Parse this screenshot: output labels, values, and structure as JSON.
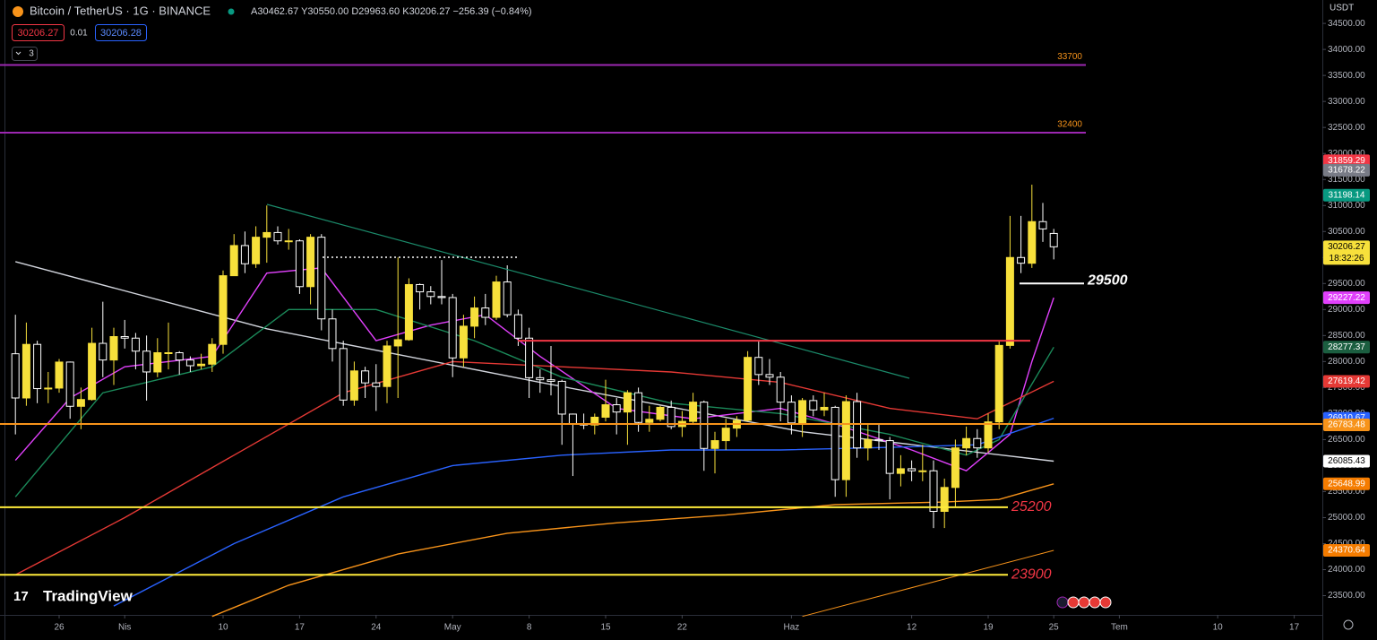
{
  "chart_data": {
    "type": "candlestick",
    "title": "Bitcoin / TetherUS · 1G · BINANCE",
    "ohlc_text": "A30462.67 Y30550.00 D29963.60 K30206.27 −256.39 (−0.84%)",
    "sell_price": "30206.27",
    "spread": "0.01",
    "buy_price": "30206.28",
    "indicator_count": "3",
    "currency": "USDT",
    "logo": "TradingView",
    "countdown": "18:32:26",
    "up_color": "#f7e03b",
    "down_color": "#000000",
    "categories": [
      null,
      null,
      null,
      null,
      null,
      null,
      null,
      null,
      null,
      null,
      null,
      null,
      null,
      null,
      null,
      null,
      null,
      null,
      null,
      null,
      null,
      null,
      null,
      null,
      null,
      null,
      null,
      null,
      null,
      null,
      null,
      null,
      null,
      null,
      null,
      null,
      null,
      null,
      null,
      null,
      null,
      null,
      null,
      null,
      null,
      null,
      null,
      null,
      null,
      null,
      null,
      null,
      null,
      null,
      null,
      null,
      null,
      null,
      null,
      null,
      null,
      null,
      null,
      null,
      null,
      null,
      null,
      null,
      null,
      null,
      null,
      null,
      null,
      null,
      null,
      null,
      null,
      null,
      null,
      null,
      null,
      null,
      null,
      null,
      null,
      null,
      null,
      null,
      null,
      null,
      null,
      null,
      null,
      null,
      null,
      null
    ],
    "open": [
      28150,
      27300,
      28330,
      27480,
      27490,
      27990,
      27140,
      27270,
      28350,
      28030,
      28480,
      28450,
      28200,
      27800,
      28170,
      28170,
      28030,
      27920,
      27950,
      28330,
      29650,
      30230,
      29880,
      30390,
      30480,
      30320,
      30320,
      29440,
      30390,
      28820,
      28250,
      27260,
      27820,
      27590,
      27520,
      28300,
      28420,
      29480,
      29340,
      29250,
      29230,
      28070,
      28680,
      29030,
      28850,
      29530,
      28900,
      28450,
      27690,
      27650,
      27620,
      26990,
      26800,
      26780,
      26930,
      27170,
      27030,
      27400,
      26830,
      26890,
      27120,
      26750,
      26850,
      27220,
      26330,
      26480,
      26720,
      26870,
      28080,
      27750,
      27700,
      27220,
      26820,
      27250,
      27070,
      27120,
      25730,
      27230,
      26340,
      26500,
      26480,
      25850,
      25940,
      25900,
      25900,
      25120,
      25580,
      26340,
      26520,
      26340,
      26840,
      28310,
      30000,
      29890,
      30690,
      30462.67
    ],
    "high": [
      28900,
      28750,
      28400,
      27800,
      28050,
      28000,
      27500,
      28650,
      29150,
      28650,
      28800,
      28550,
      28500,
      28450,
      28750,
      28200,
      28100,
      28150,
      28450,
      29750,
      30450,
      30500,
      30600,
      31000,
      30600,
      30550,
      30350,
      30450,
      30450,
      29000,
      28400,
      28000,
      27900,
      27950,
      28400,
      30000,
      29600,
      29500,
      29450,
      29950,
      29300,
      28900,
      29250,
      29300,
      29650,
      29850,
      29000,
      28650,
      27850,
      28300,
      27650,
      27000,
      27000,
      27000,
      27650,
      27300,
      27450,
      27500,
      27150,
      27150,
      27250,
      27050,
      27400,
      27250,
      26650,
      26900,
      26950,
      28200,
      28400,
      28050,
      27800,
      27350,
      27300,
      27350,
      27400,
      27150,
      27350,
      27400,
      26800,
      26800,
      26550,
      26200,
      26100,
      26400,
      26100,
      25750,
      26500,
      26750,
      26700,
      27000,
      28400,
      30800,
      30800,
      31400,
      31050,
      30550
    ],
    "low": [
      26600,
      27150,
      27200,
      27200,
      27400,
      26900,
      26700,
      27250,
      27700,
      27550,
      28250,
      27850,
      27250,
      27700,
      27850,
      27750,
      27800,
      27850,
      27800,
      28150,
      29650,
      29700,
      29800,
      29900,
      30250,
      30150,
      29300,
      29100,
      28600,
      28000,
      27150,
      27150,
      27300,
      27050,
      27200,
      27300,
      28400,
      29000,
      29100,
      29100,
      27700,
      27900,
      28450,
      28700,
      28800,
      28850,
      28300,
      27300,
      27400,
      27350,
      26400,
      25800,
      26700,
      26600,
      26850,
      26600,
      26400,
      26650,
      26650,
      26850,
      26700,
      26550,
      26800,
      25900,
      25850,
      26300,
      26550,
      26850,
      27550,
      27550,
      26850,
      26600,
      26550,
      26950,
      26950,
      25400,
      25400,
      26150,
      26100,
      26300,
      25350,
      25600,
      25700,
      25700,
      24800,
      24800,
      25200,
      26200,
      26150,
      26250,
      26700,
      28250,
      29700,
      29800,
      30300,
      29963.6
    ],
    "close": [
      27300,
      28330,
      27480,
      27490,
      27990,
      27140,
      27270,
      28350,
      28030,
      28480,
      28450,
      28200,
      27800,
      28170,
      28170,
      28030,
      27920,
      27950,
      28330,
      29650,
      30230,
      29880,
      30390,
      30480,
      30320,
      30320,
      29440,
      30390,
      28820,
      28250,
      27260,
      27820,
      27590,
      27520,
      28300,
      28420,
      29480,
      29340,
      29250,
      29230,
      28070,
      28680,
      29030,
      28850,
      29530,
      28900,
      28450,
      27690,
      27650,
      27620,
      26990,
      26800,
      26780,
      26930,
      27170,
      27030,
      27400,
      26830,
      26890,
      27120,
      26750,
      26850,
      27220,
      26330,
      26480,
      26720,
      26870,
      28080,
      27750,
      27700,
      27220,
      26820,
      27250,
      27070,
      27120,
      25730,
      27230,
      26340,
      26500,
      26480,
      25850,
      25940,
      25900,
      25900,
      25120,
      25580,
      26340,
      26520,
      26340,
      26840,
      28310,
      30000,
      29890,
      30690,
      30550,
      30206.27
    ],
    "ylim": [
      23130,
      34950
    ],
    "yticks": [
      {
        "value": 34500,
        "label": "34500.00"
      },
      {
        "value": 34000,
        "label": "34000.00"
      },
      {
        "value": 33500,
        "label": "33500.00"
      },
      {
        "value": 33000,
        "label": "33000.00"
      },
      {
        "value": 32500,
        "label": "32500.00"
      },
      {
        "value": 32000,
        "label": "32000.00"
      },
      {
        "value": 31500,
        "label": "31500.00"
      },
      {
        "value": 31000,
        "label": "31000.00"
      },
      {
        "value": 30500,
        "label": "30500.00"
      },
      {
        "value": 30000,
        "label": "30000.00"
      },
      {
        "value": 29500,
        "label": "29500.00"
      },
      {
        "value": 29000,
        "label": "29000.00"
      },
      {
        "value": 28500,
        "label": "28500.00"
      },
      {
        "value": 28000,
        "label": "28000.00"
      },
      {
        "value": 27500,
        "label": "27500.00"
      },
      {
        "value": 27000,
        "label": "27000.00"
      },
      {
        "value": 26500,
        "label": "26500.00"
      },
      {
        "value": 26000,
        "label": "26000.00"
      },
      {
        "value": 25500,
        "label": "25500.00"
      },
      {
        "value": 25000,
        "label": "25000.00"
      },
      {
        "value": 24500,
        "label": "24500.00"
      },
      {
        "value": 24000,
        "label": "24000.00"
      },
      {
        "value": 23500,
        "label": "23500.00"
      }
    ],
    "xticks": [
      {
        "value": 4,
        "label": "26"
      },
      {
        "value": 10,
        "label": "Nis"
      },
      {
        "value": 19,
        "label": "10"
      },
      {
        "value": 26,
        "label": "17"
      },
      {
        "value": 33,
        "label": "24"
      },
      {
        "value": 40,
        "label": "May"
      },
      {
        "value": 47,
        "label": "8"
      },
      {
        "value": 54,
        "label": "15"
      },
      {
        "value": 61,
        "label": "22"
      },
      {
        "value": 71,
        "label": "Haz"
      },
      {
        "value": 82,
        "label": "12"
      },
      {
        "value": 89,
        "label": "19"
      },
      {
        "value": 95,
        "label": "25"
      },
      {
        "value": 101,
        "label": "Tem"
      },
      {
        "value": 110,
        "label": "10"
      },
      {
        "value": 117,
        "label": "17"
      }
    ],
    "moving_averages": [
      {
        "color": "#d1d4dc",
        "x": [
          0,
          23,
          48,
          72,
          95
        ],
        "values": [
          29920,
          28630,
          27600,
          26650,
          26085.43
        ]
      },
      {
        "color": "#e040fb",
        "x": [
          0,
          5,
          10,
          18,
          23,
          28,
          33,
          38,
          43,
          48,
          55,
          62,
          70,
          75,
          82,
          87,
          91,
          93,
          95
        ],
        "values": [
          26100,
          27300,
          27900,
          28100,
          29700,
          29800,
          28400,
          28700,
          28900,
          28100,
          27100,
          26900,
          27100,
          26800,
          26300,
          25900,
          26600,
          28000,
          29227.22
        ]
      },
      {
        "color": "#1b8a5a",
        "x": [
          0,
          8,
          18,
          25,
          33,
          42,
          50,
          60,
          70,
          80,
          87,
          90,
          95
        ],
        "values": [
          25400,
          27400,
          27900,
          29000,
          29000,
          28400,
          27700,
          27200,
          27000,
          26600,
          26200,
          26500,
          28277.37
        ]
      },
      {
        "color": "#e53935",
        "x": [
          0,
          10,
          20,
          30,
          40,
          50,
          60,
          70,
          80,
          88,
          95
        ],
        "values": [
          23900,
          25000,
          26200,
          27400,
          28000,
          27900,
          27800,
          27600,
          27100,
          26900,
          27619.42
        ]
      },
      {
        "color": "#2962ff",
        "x": [
          9,
          20,
          30,
          40,
          50,
          60,
          70,
          80,
          88,
          95
        ],
        "values": [
          23300,
          24500,
          25400,
          26000,
          26200,
          26300,
          26300,
          26350,
          26400,
          26910.67
        ]
      },
      {
        "color": "#f7931a",
        "x": [
          18,
          25,
          35,
          45,
          55,
          65,
          75,
          85,
          90,
          95
        ],
        "values": [
          23100,
          23700,
          24300,
          24700,
          24900,
          25050,
          25250,
          25300,
          25350,
          25648.99
        ]
      },
      {
        "color": "#f7931a",
        "x": [
          72,
          95
        ],
        "values": [
          23100,
          24370.64
        ]
      }
    ],
    "levels": [
      {
        "value": 33700,
        "color": "#9c27b0"
      },
      {
        "value": 32400,
        "color": "#9c27b0"
      },
      {
        "value": 28400,
        "color": "#f23645"
      },
      {
        "value": 26800,
        "color": "#f7931a"
      },
      {
        "value": 25200,
        "color": "#ffeb3b"
      },
      {
        "value": 23900,
        "color": "#ffeb3b"
      },
      {
        "value": 29500,
        "color": "#ffffff"
      }
    ],
    "price_labels": [
      {
        "value": 31859.29,
        "color": "#f23645"
      },
      {
        "value": 31678.22,
        "color": "#787b86"
      },
      {
        "value": 31198.14,
        "color": "#089981"
      },
      {
        "value": 30206.27,
        "color": "#f7e03b"
      },
      {
        "value": 29227.22,
        "color": "#e040fb"
      },
      {
        "value": 28277.37,
        "color": "#1b5e40"
      },
      {
        "value": 27619.42,
        "color": "#e53935"
      },
      {
        "value": 26910.67,
        "color": "#2962ff"
      },
      {
        "value": 26783.48,
        "color": "#f7931a"
      },
      {
        "value": 26085.43,
        "color": "#ffffff"
      },
      {
        "value": 25648.99,
        "color": "#f57c00"
      },
      {
        "value": 24370.64,
        "color": "#f57c00"
      }
    ]
  }
}
